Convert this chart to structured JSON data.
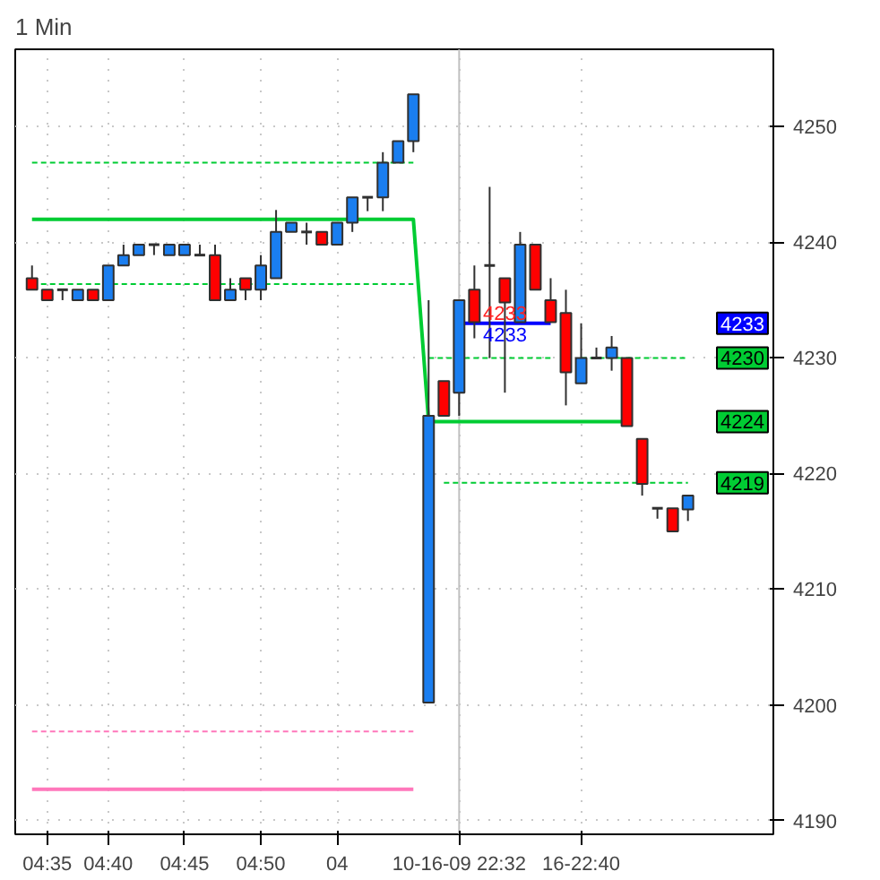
{
  "chart_data": {
    "type": "candlestick",
    "title": "1 Min",
    "categories": [
      null,
      "04:35",
      null,
      null,
      null,
      "04:40",
      null,
      null,
      null,
      null,
      "04:45",
      null,
      null,
      null,
      null,
      "04:50",
      null,
      null,
      null,
      null,
      "04",
      null,
      null,
      null,
      null,
      null,
      null,
      null,
      "10-16-09 22:32",
      null,
      null,
      null,
      null,
      null,
      null,
      null,
      "16-22:40",
      null,
      null,
      null,
      null,
      null,
      null,
      null
    ],
    "ohlc": [
      [
        4236.9,
        4238.0,
        4235.9,
        4235.9
      ],
      [
        4235.9,
        4235.9,
        4235.0,
        4235.0
      ],
      [
        4235.9,
        4235.9,
        4235.0,
        4235.9
      ],
      [
        4235.0,
        4235.9,
        4235.0,
        4235.9
      ],
      [
        4235.9,
        4235.9,
        4235.0,
        4235.0
      ],
      [
        4235.0,
        4238.0,
        4235.0,
        4238.0
      ],
      [
        4238.0,
        4239.8,
        4238.0,
        4238.9
      ],
      [
        4238.9,
        4239.8,
        4238.9,
        4239.8
      ],
      [
        4239.8,
        4239.8,
        4238.9,
        4239.8
      ],
      [
        4238.9,
        4239.8,
        4238.9,
        4239.8
      ],
      [
        4238.9,
        4239.8,
        4238.9,
        4239.8
      ],
      [
        4238.9,
        4239.8,
        4238.9,
        4238.9
      ],
      [
        4238.9,
        4239.8,
        4235.0,
        4235.0
      ],
      [
        4235.0,
        4236.9,
        4235.0,
        4235.9
      ],
      [
        4236.9,
        4236.9,
        4235.0,
        4235.9
      ],
      [
        4235.9,
        4238.9,
        4235.0,
        4238.0
      ],
      [
        4236.9,
        4242.8,
        4236.9,
        4240.9
      ],
      [
        4240.9,
        4241.7,
        4240.9,
        4241.7
      ],
      [
        4240.9,
        4241.7,
        4239.8,
        4240.9
      ],
      [
        4240.9,
        4240.9,
        4239.8,
        4239.8
      ],
      [
        4239.8,
        4241.7,
        4239.8,
        4241.7
      ],
      [
        4241.7,
        4243.9,
        4240.9,
        4243.9
      ],
      [
        4243.9,
        4243.9,
        4242.7,
        4243.9
      ],
      [
        4243.9,
        4247.8,
        4242.7,
        4246.9
      ],
      [
        4246.9,
        4248.75,
        4246.9,
        4248.75
      ],
      [
        4248.75,
        4252.8,
        4247.8,
        4252.8
      ],
      [
        4200.2,
        4235.0,
        4200.2,
        4225.0
      ],
      [
        4228.0,
        4228.0,
        4225.0,
        4225.0
      ],
      [
        4227.0,
        4235.0,
        4225.0,
        4235.0
      ],
      [
        4235.9,
        4238.0,
        4231.7,
        4233.1
      ],
      [
        4238.0,
        4244.8,
        4230.0,
        4238.0
      ],
      [
        4236.9,
        4236.9,
        4227.0,
        4234.8
      ],
      [
        4233.1,
        4240.9,
        4233.1,
        4239.8
      ],
      [
        4239.8,
        4239.8,
        4235.9,
        4235.9
      ],
      [
        4235.0,
        4236.9,
        4233.1,
        4233.1
      ],
      [
        4233.9,
        4235.9,
        4225.9,
        4228.75
      ],
      [
        4227.8,
        4233.0,
        4227.8,
        4230.0
      ],
      [
        4230.0,
        4230.9,
        4230.0,
        4230.0
      ],
      [
        4230.0,
        4231.9,
        4228.9,
        4230.9
      ],
      [
        4230.0,
        4230.0,
        4224.1,
        4224.1
      ],
      [
        4223.0,
        4223.0,
        4218.1,
        4219.1
      ],
      [
        4217.0,
        4217.0,
        4216.1,
        4217.0
      ],
      [
        4217.0,
        4217.0,
        4215.0,
        4215.0
      ],
      [
        4216.9,
        4218.1,
        4215.9,
        4218.1
      ]
    ],
    "series": [
      {
        "type": "line",
        "color": "#00cc33",
        "line_style": "solid",
        "values": [
          4242.0,
          4242.0,
          4242.0,
          4242.0,
          4242.0,
          4242.0,
          4242.0,
          4242.0,
          4242.0,
          4242.0,
          4242.0,
          4242.0,
          4242.0,
          4242.0,
          4242.0,
          4242.0,
          4242.0,
          4242.0,
          4242.0,
          4242.0,
          4242.0,
          4242.0,
          4242.0,
          4242.0,
          4242.0,
          4242.0,
          4224.5,
          4224.5,
          4224.5,
          4224.5,
          4224.5,
          4224.5,
          4224.5,
          4224.5,
          4224.5,
          4224.5,
          4224.5,
          4224.5,
          4224.5,
          4224.5,
          null,
          null,
          null,
          null
        ]
      },
      {
        "type": "line",
        "color": "#00cc33",
        "line_style": "dashed",
        "values": [
          4246.9,
          4246.9,
          4246.9,
          4246.9,
          4246.9,
          4246.9,
          4246.9,
          4246.9,
          4246.9,
          4246.9,
          4246.9,
          4246.9,
          4246.9,
          4246.9,
          4246.9,
          4246.9,
          4246.9,
          4246.9,
          4246.9,
          4246.9,
          4246.9,
          4246.9,
          4246.9,
          4246.9,
          4246.9,
          4246.9,
          null,
          null,
          null,
          null,
          null,
          null,
          null,
          null,
          null,
          null,
          null,
          null,
          null,
          null,
          null,
          null,
          null,
          null
        ]
      },
      {
        "type": "line",
        "color": "#00cc33",
        "line_style": "dashed",
        "values": [
          4236.4,
          4236.4,
          4236.4,
          4236.4,
          4236.4,
          4236.4,
          4236.4,
          4236.4,
          4236.4,
          4236.4,
          4236.4,
          4236.4,
          4236.4,
          4236.4,
          4236.4,
          4236.4,
          4236.4,
          4236.4,
          4236.4,
          4236.4,
          4236.4,
          4236.4,
          4236.4,
          4236.4,
          4236.4,
          4236.4,
          null,
          null,
          null,
          null,
          null,
          null,
          null,
          null,
          null,
          null,
          null,
          null,
          null,
          null,
          null,
          null,
          null,
          null
        ]
      },
      {
        "type": "line",
        "color": "#00cc33",
        "line_style": "dashed",
        "values": [
          null,
          null,
          null,
          null,
          null,
          null,
          null,
          null,
          null,
          null,
          null,
          null,
          null,
          null,
          null,
          null,
          null,
          null,
          null,
          null,
          null,
          null,
          null,
          null,
          null,
          null,
          4230.0,
          4230.0,
          4230.0,
          4230.0,
          4230.0,
          4230.0,
          4230.0,
          4230.0,
          4230.0,
          null,
          4230.0,
          4230.0,
          4230.0,
          4230.0,
          4230.0,
          4230.0,
          4230.0,
          4230.0
        ]
      },
      {
        "type": "line",
        "color": "#00cc33",
        "line_style": "dashed",
        "values": [
          null,
          null,
          null,
          null,
          null,
          null,
          null,
          null,
          null,
          null,
          null,
          null,
          null,
          null,
          null,
          null,
          null,
          null,
          null,
          null,
          null,
          null,
          null,
          null,
          null,
          null,
          null,
          4219.2,
          4219.2,
          4219.2,
          4219.2,
          4219.2,
          4219.2,
          4219.2,
          4219.2,
          4219.2,
          4219.2,
          4219.2,
          4219.2,
          4219.2,
          4219.2,
          4219.2,
          4219.2,
          4219.2
        ]
      },
      {
        "type": "line",
        "color": "#ff77bb",
        "line_style": "dashed",
        "values": [
          4197.7,
          4197.7,
          4197.7,
          4197.7,
          4197.7,
          4197.7,
          4197.7,
          4197.7,
          4197.7,
          4197.7,
          4197.7,
          4197.7,
          4197.7,
          4197.7,
          4197.7,
          4197.7,
          4197.7,
          4197.7,
          4197.7,
          4197.7,
          4197.7,
          4197.7,
          4197.7,
          4197.7,
          4197.7,
          4197.7,
          null,
          null,
          null,
          null,
          null,
          null,
          null,
          null,
          null,
          null,
          null,
          null,
          null,
          null,
          null,
          null,
          null,
          null
        ]
      },
      {
        "type": "line",
        "color": "#ff77bb",
        "line_style": "solid",
        "values": [
          4192.7,
          4192.7,
          4192.7,
          4192.7,
          4192.7,
          4192.7,
          4192.7,
          4192.7,
          4192.7,
          4192.7,
          4192.7,
          4192.7,
          4192.7,
          4192.7,
          4192.7,
          4192.7,
          4192.7,
          4192.7,
          4192.7,
          4192.7,
          4192.7,
          4192.7,
          4192.7,
          4192.7,
          4192.7,
          4192.7,
          null,
          null,
          null,
          null,
          null,
          null,
          null,
          null,
          null,
          null,
          null,
          null,
          null,
          null,
          null,
          null,
          null,
          null
        ]
      },
      {
        "type": "line",
        "color": "#0000ff",
        "line_style": "solid",
        "values": [
          null,
          null,
          null,
          null,
          null,
          null,
          null,
          null,
          null,
          null,
          null,
          null,
          null,
          null,
          null,
          null,
          null,
          null,
          null,
          null,
          null,
          null,
          null,
          null,
          null,
          null,
          null,
          null,
          4233.0,
          4233.0,
          4233.0,
          4233.0,
          4233.0,
          4233.0,
          4233.0,
          null,
          null,
          null,
          null,
          null,
          null,
          null,
          null,
          null
        ]
      }
    ],
    "ref_lines": [
      {
        "axis": "x",
        "value": "10-16-09 22:32",
        "color": "#c0c0c0"
      }
    ],
    "annotations": [
      "4233",
      "4233",
      "4233",
      "4230",
      "4224",
      "4219"
    ],
    "ylim": [
      4188.8,
      4256.7
    ],
    "yticks": [
      4190,
      4200,
      4210,
      4220,
      4230,
      4240,
      4250
    ],
    "grid": true
  }
}
